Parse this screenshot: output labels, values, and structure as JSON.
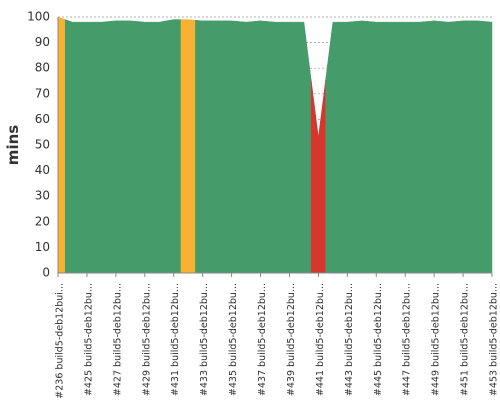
{
  "chart_data": {
    "type": "area",
    "y_label": "mins",
    "categories": [
      "#236 build5-deb12bui...",
      null,
      "#425 build5-deb12bu...",
      null,
      "#427 build5-deb12bu...",
      null,
      "#429 build5-deb12bu...",
      null,
      "#431 build5-deb12bu...",
      null,
      "#433 build5-deb12bu...",
      null,
      "#435 build5-deb12bu...",
      null,
      "#437 build5-deb12bu...",
      null,
      "#439 build5-deb12bu...",
      null,
      "#441 build5-deb12bu...",
      null,
      "#443 build5-deb12bu...",
      null,
      "#445 build5-deb12bu...",
      null,
      "#447 build5-deb12bu...",
      null,
      "#449 build5-deb12bu...",
      null,
      "#451 build5-deb12bu...",
      null,
      "#453 build5-deb12bu..."
    ],
    "values": [
      100,
      98,
      98,
      98,
      98.5,
      98.5,
      98,
      98,
      99,
      99,
      98.5,
      98.5,
      98.5,
      98,
      98.5,
      98,
      98,
      98,
      53,
      98,
      98,
      98.5,
      98,
      98,
      98,
      98,
      98.5,
      98,
      98.5,
      98.5,
      98
    ],
    "colors": [
      "#f8b133",
      "#459c6a",
      "#459c6a",
      "#459c6a",
      "#459c6a",
      "#459c6a",
      "#459c6a",
      "#459c6a",
      "#459c6a",
      "#f8b133",
      "#459c6a",
      "#459c6a",
      "#459c6a",
      "#459c6a",
      "#459c6a",
      "#459c6a",
      "#459c6a",
      "#459c6a",
      "#d8362c",
      "#459c6a",
      "#459c6a",
      "#459c6a",
      "#459c6a",
      "#459c6a",
      "#459c6a",
      "#459c6a",
      "#459c6a",
      "#459c6a",
      "#459c6a",
      "#459c6a",
      "#459c6a"
    ],
    "ylim": [
      0,
      100
    ],
    "yticks": [
      0,
      10,
      20,
      30,
      40,
      50,
      60,
      70,
      80,
      90,
      100
    ],
    "grid": true
  }
}
